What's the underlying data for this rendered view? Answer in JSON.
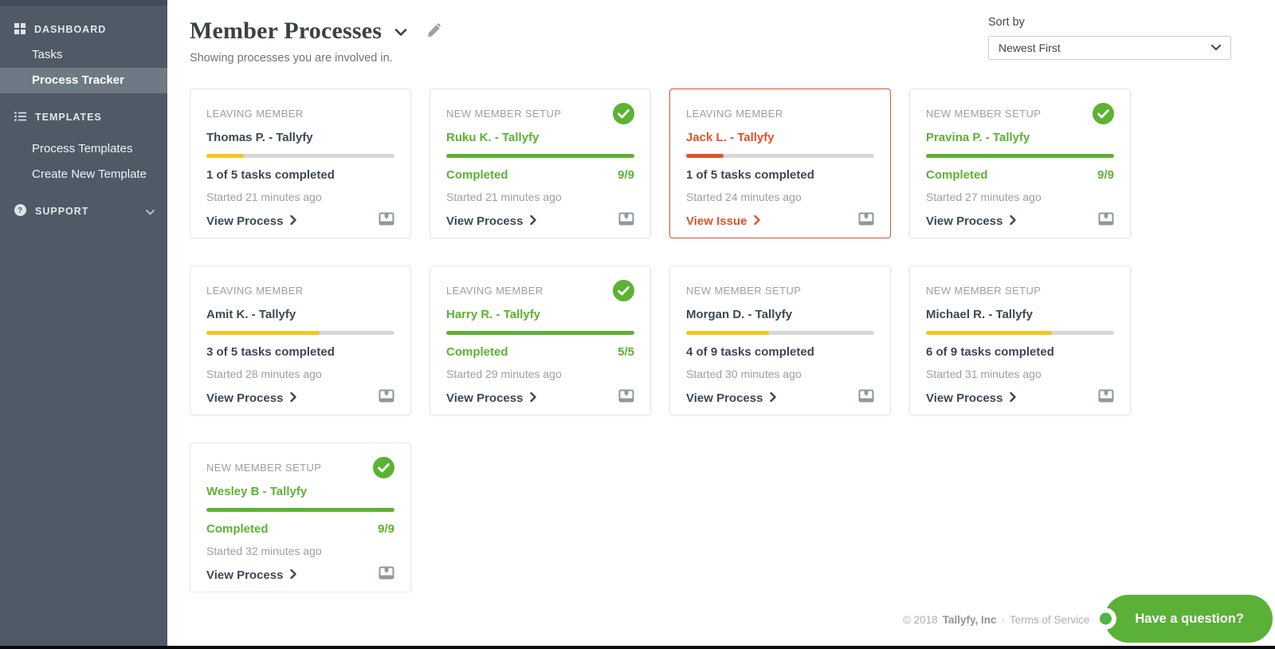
{
  "colors": {
    "green": "#5cb232",
    "yellow": "#f6c51e",
    "red": "#e0532c"
  },
  "icons": {
    "sidebar": [
      "grid-icon",
      "list-icon",
      "question-icon",
      "chevron-down-icon"
    ],
    "header": [
      "chevron-down-icon",
      "pencil-icon"
    ],
    "card": [
      "check-icon",
      "chevron-right-icon",
      "monitor-icon"
    ],
    "footer": [
      "up-arrow-icon"
    ],
    "chat": [
      "status-dot"
    ]
  },
  "sidebar": {
    "sections": [
      {
        "label": "DASHBOARD",
        "icon": "grid-icon",
        "items": [
          {
            "label": "Tasks",
            "active": false
          },
          {
            "label": "Process Tracker",
            "active": true
          }
        ]
      },
      {
        "label": "TEMPLATES",
        "icon": "list-icon",
        "items": [
          {
            "label": "Process Templates",
            "active": false
          },
          {
            "label": "Create New Template",
            "active": false
          }
        ]
      },
      {
        "label": "SUPPORT",
        "icon": "question-icon",
        "chevron": "chevron-down-icon",
        "items": []
      }
    ]
  },
  "header": {
    "title": "Member Processes",
    "subtitle": "Showing processes you are involved in."
  },
  "sort": {
    "label": "Sort by",
    "value": "Newest First"
  },
  "cards": [
    {
      "type": "LEAVING MEMBER",
      "name": "Thomas P. - Tallyfy",
      "state": "running",
      "accent": "yellow",
      "progress_pct": 20,
      "badge": false,
      "status_left": "1 of 5 tasks completed",
      "status_right": "",
      "started": "Started 21 minutes ago",
      "action": "View Process"
    },
    {
      "type": "NEW MEMBER SETUP",
      "name": "Ruku K. - Tallyfy",
      "state": "completed",
      "accent": "green",
      "progress_pct": 100,
      "badge": true,
      "status_left": "Completed",
      "status_right": "9/9",
      "started": "Started 21 minutes ago",
      "action": "View Process"
    },
    {
      "type": "LEAVING MEMBER",
      "name": "Jack L. - Tallyfy",
      "state": "issue",
      "accent": "red",
      "progress_pct": 20,
      "badge": false,
      "status_left": "1 of 5 tasks completed",
      "status_right": "",
      "started": "Started 24 minutes ago",
      "action": "View Issue"
    },
    {
      "type": "NEW MEMBER SETUP",
      "name": "Pravina P. - Tallyfy",
      "state": "completed",
      "accent": "green",
      "progress_pct": 100,
      "badge": true,
      "status_left": "Completed",
      "status_right": "9/9",
      "started": "Started 27 minutes ago",
      "action": "View Process"
    },
    {
      "type": "LEAVING MEMBER",
      "name": "Amit K. - Tallyfy",
      "state": "running",
      "accent": "yellow",
      "progress_pct": 60,
      "badge": false,
      "status_left": "3 of 5 tasks completed",
      "status_right": "",
      "started": "Started 28 minutes ago",
      "action": "View Process"
    },
    {
      "type": "LEAVING MEMBER",
      "name": "Harry R. - Tallyfy",
      "state": "completed",
      "accent": "green",
      "progress_pct": 100,
      "badge": true,
      "status_left": "Completed",
      "status_right": "5/5",
      "started": "Started 29 minutes ago",
      "action": "View Process"
    },
    {
      "type": "NEW MEMBER SETUP",
      "name": "Morgan D. - Tallyfy",
      "state": "running",
      "accent": "yellow",
      "progress_pct": 44,
      "badge": false,
      "status_left": "4 of 9 tasks completed",
      "status_right": "",
      "started": "Started 30 minutes ago",
      "action": "View Process"
    },
    {
      "type": "NEW MEMBER SETUP",
      "name": "Michael R. - Tallyfy",
      "state": "running",
      "accent": "yellow",
      "progress_pct": 67,
      "badge": false,
      "status_left": "6 of 9 tasks completed",
      "status_right": "",
      "started": "Started 31 minutes ago",
      "action": "View Process"
    },
    {
      "type": "NEW MEMBER SETUP",
      "name": "Wesley B - Tallyfy",
      "state": "completed",
      "accent": "green",
      "progress_pct": 100,
      "badge": true,
      "status_left": "Completed",
      "status_right": "9/9",
      "started": "Started 32 minutes ago",
      "action": "View Process"
    }
  ],
  "footer": {
    "copyright": "© 2018",
    "company": "Tallyfy, Inc",
    "separator": "·",
    "terms": "Terms of Service",
    "up_arrow": "↑"
  },
  "chat": {
    "label": "Have a question?"
  }
}
